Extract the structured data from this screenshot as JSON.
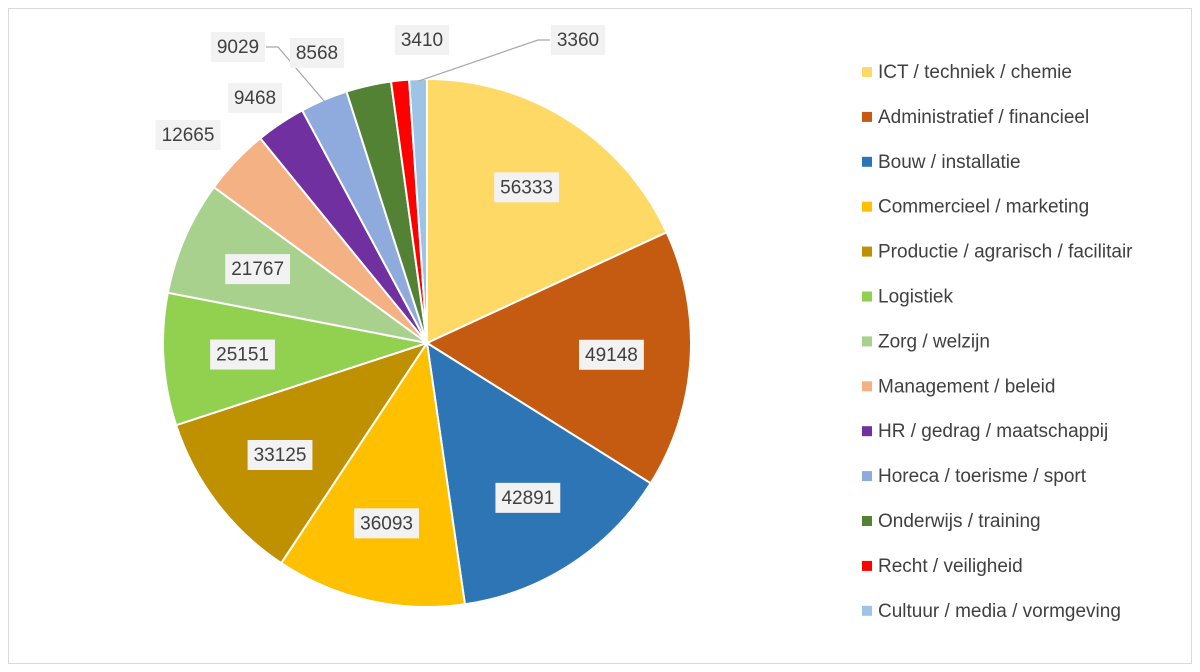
{
  "chart_data": {
    "type": "pie",
    "categories": [
      "ICT / techniek / chemie",
      "Administratief / financieel",
      "Bouw / installatie",
      "Commercieel / marketing",
      "Productie / agrarisch / facilitair",
      "Logistiek",
      "Zorg / welzijn",
      "Management / beleid",
      "HR / gedrag / maatschappij",
      "Horeca / toerisme / sport",
      "Onderwijs / training",
      "Recht / veiligheid",
      "Cultuur / media / vormgeving"
    ],
    "values": [
      56333,
      49148,
      42891,
      36093,
      33125,
      25151,
      21767,
      12665,
      9468,
      9029,
      8568,
      3410,
      3360
    ],
    "colors": [
      "#ffd966",
      "#c55a11",
      "#2e75b6",
      "#ffc000",
      "#bf9000",
      "#92d050",
      "#a9d18e",
      "#f4b183",
      "#7030a0",
      "#8faadc",
      "#548235",
      "#ff0000",
      "#9dc3e6"
    ],
    "legend": "right"
  }
}
